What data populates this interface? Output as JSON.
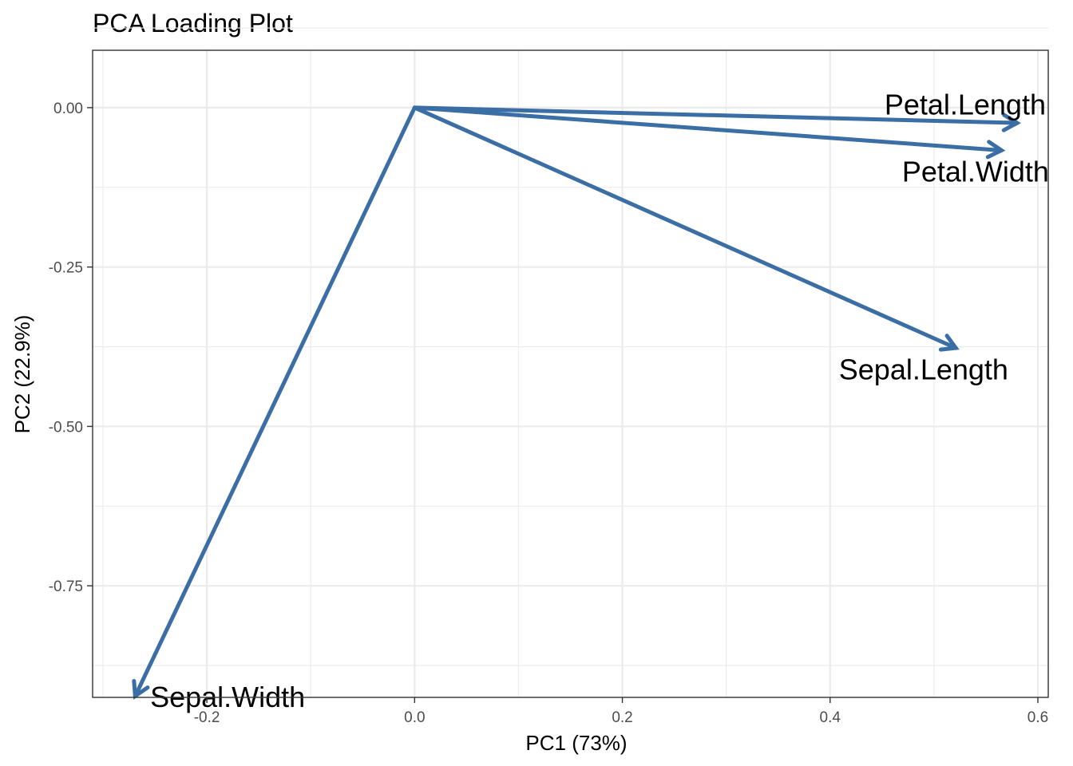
{
  "chart_data": {
    "type": "scatter",
    "subtype": "pca-loading-vectors",
    "title": "PCA Loading Plot",
    "xlabel": "PC1 (73%)",
    "ylabel": "PC2 (22.9%)",
    "xlim": [
      -0.31,
      0.61
    ],
    "ylim": [
      -0.925,
      0.09
    ],
    "x_ticks": [
      -0.2,
      0.0,
      0.2,
      0.4,
      0.6
    ],
    "x_tick_labels": [
      "-0.2",
      "0.0",
      "0.2",
      "0.4",
      "0.6"
    ],
    "x_minor_ticks": [
      -0.3,
      -0.1,
      0.1,
      0.3,
      0.5
    ],
    "y_ticks": [
      0.0,
      -0.25,
      -0.5,
      -0.75
    ],
    "y_tick_labels": [
      "0.00",
      "-0.25",
      "-0.50",
      "-0.75"
    ],
    "y_minor_ticks": [
      0.125,
      -0.125,
      -0.375,
      -0.625,
      -0.875
    ],
    "grid": true,
    "origin": [
      0,
      0
    ],
    "arrow_color": "#3a6ea5",
    "vectors": [
      {
        "name": "Sepal.Length",
        "x": 0.521,
        "y": -0.377,
        "label_x": 0.49,
        "label_y": -0.411
      },
      {
        "name": "Sepal.Width",
        "x": -0.269,
        "y": -0.923,
        "label_x": -0.18,
        "label_y": -0.925
      },
      {
        "name": "Petal.Length",
        "x": 0.58,
        "y": -0.024,
        "label_x": 0.53,
        "label_y": 0.004
      },
      {
        "name": "Petal.Width",
        "x": 0.565,
        "y": -0.067,
        "label_x": 0.54,
        "label_y": -0.101
      }
    ]
  }
}
